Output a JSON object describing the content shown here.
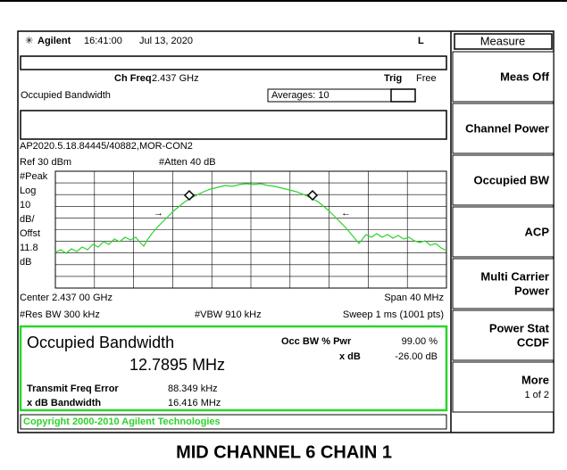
{
  "header": {
    "brand": "Agilent",
    "time": "16:41:00",
    "date": "Jul 13, 2020",
    "mode": "L"
  },
  "channel": {
    "ch_freq_label": "Ch Freq",
    "ch_freq": "2.437 GHz",
    "trig_label": "Trig",
    "trig": "Free"
  },
  "measurement": {
    "name": "Occupied Bandwidth",
    "averages": "Averages: 10",
    "file": "AP2020.5.18.84445/40882,MOR-CON2",
    "ref": "Ref 30 dBm",
    "atten": "#Atten 40 dB",
    "scale": [
      "#Peak",
      "Log",
      "10",
      "dB/",
      "Offst",
      "11.8",
      "dB"
    ],
    "center": "Center 2.437 00 GHz",
    "span": "Span 40 MHz",
    "res_bw": "#Res BW 300 kHz",
    "vbw": "#VBW 910 kHz",
    "sweep": "Sweep 1 ms (1001 pts)"
  },
  "results": {
    "title": "Occupied Bandwidth",
    "value": "12.7895 MHz",
    "occ_pwr_label": "Occ BW % Pwr",
    "occ_pwr": "99.00 %",
    "xdb_label": "x dB",
    "xdb": "-26.00 dB",
    "tfe_label": "Transmit Freq Error",
    "tfe": "88.349 kHz",
    "xbw_label": "x dB Bandwidth",
    "xbw": "16.416 MHz"
  },
  "copyright": "Copyright 2000-2010 Agilent Technologies",
  "menu": {
    "title": "Measure",
    "items": [
      [
        "Meas Off"
      ],
      [
        "Channel Power"
      ],
      [
        "Occupied BW"
      ],
      [
        "ACP"
      ],
      [
        "Multi Carrier",
        "Power"
      ],
      [
        "Power Stat",
        "CCDF"
      ],
      [
        "More",
        "1 of 2"
      ]
    ]
  },
  "caption": "MID CHANNEL 6 CHAIN 1"
}
